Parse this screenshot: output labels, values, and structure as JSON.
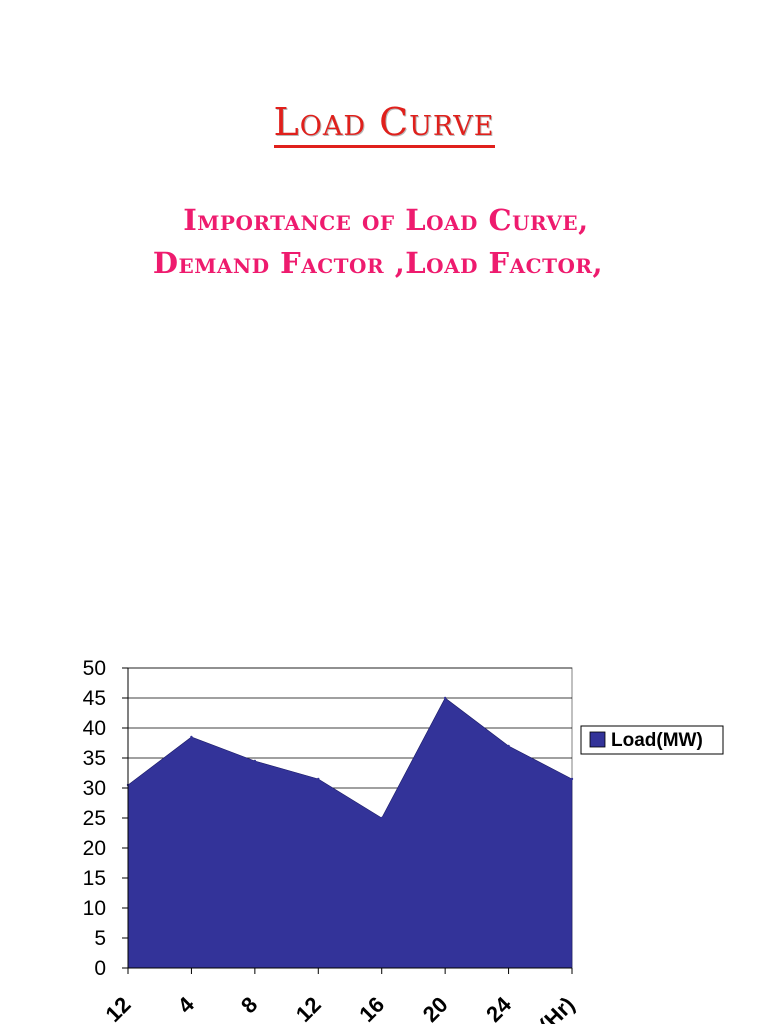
{
  "slide": {
    "title": "Load Curve",
    "subtitle_line1": "Importance of Load Curve,",
    "subtitle_line2": "Demand Factor ,Load Factor,"
  },
  "chart_data": {
    "type": "area",
    "title": "",
    "xlabel": "",
    "ylabel": "",
    "x": [
      "12",
      "4",
      "8",
      "12",
      "16",
      "20",
      "24",
      "Time(Hr)"
    ],
    "series": [
      {
        "name": "Load(MW)",
        "values": [
          30.5,
          38.5,
          34.5,
          31.5,
          25,
          45,
          37,
          31.5
        ]
      }
    ],
    "ylim": [
      0,
      50
    ],
    "yticks": [
      0,
      5,
      10,
      15,
      20,
      25,
      30,
      35,
      40,
      45,
      50
    ],
    "grid": true,
    "legend": "right",
    "colors": {
      "fill": "#333399",
      "grid": "#000000"
    }
  }
}
